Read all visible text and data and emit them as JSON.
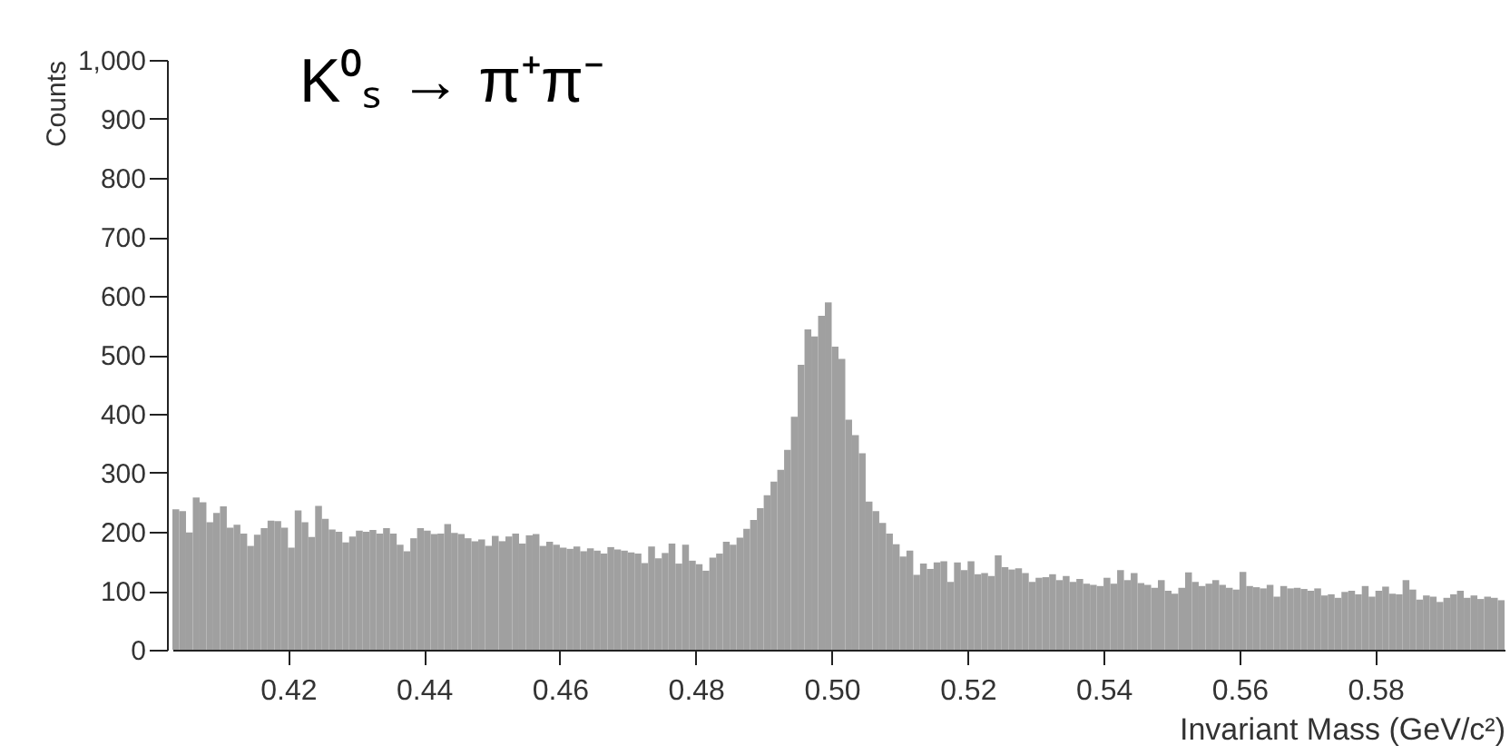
{
  "chart_data": {
    "type": "histogram",
    "title": "K⁰ₛ → π⁺π⁻",
    "xlabel": "Invariant Mass (GeV/c²)",
    "ylabel": "Counts",
    "bins": [
      0.403,
      0.404,
      0.405,
      0.406,
      0.407,
      0.408,
      0.409,
      0.41,
      0.411,
      0.412,
      0.413,
      0.414,
      0.415,
      0.416,
      0.417,
      0.418,
      0.419,
      0.42,
      0.421,
      0.422,
      0.423,
      0.424,
      0.425,
      0.426,
      0.427,
      0.428,
      0.429,
      0.43,
      0.431,
      0.432,
      0.433,
      0.434,
      0.435,
      0.436,
      0.437,
      0.438,
      0.439,
      0.44,
      0.441,
      0.442,
      0.443,
      0.444,
      0.445,
      0.446,
      0.447,
      0.448,
      0.449,
      0.45,
      0.451,
      0.452,
      0.453,
      0.454,
      0.455,
      0.456,
      0.457,
      0.458,
      0.459,
      0.46,
      0.461,
      0.462,
      0.463,
      0.464,
      0.465,
      0.466,
      0.467,
      0.468,
      0.469,
      0.47,
      0.471,
      0.472,
      0.473,
      0.474,
      0.475,
      0.476,
      0.477,
      0.478,
      0.479,
      0.48,
      0.481,
      0.482,
      0.483,
      0.484,
      0.485,
      0.486,
      0.487,
      0.488,
      0.489,
      0.49,
      0.491,
      0.492,
      0.493,
      0.494,
      0.495,
      0.496,
      0.497,
      0.498,
      0.499,
      0.5,
      0.501,
      0.502,
      0.503,
      0.504,
      0.505,
      0.506,
      0.507,
      0.508,
      0.509,
      0.51,
      0.511,
      0.512,
      0.513,
      0.514,
      0.515,
      0.516,
      0.517,
      0.518,
      0.519,
      0.52,
      0.521,
      0.522,
      0.523,
      0.524,
      0.525,
      0.526,
      0.527,
      0.528,
      0.529,
      0.53,
      0.531,
      0.532,
      0.533,
      0.534,
      0.535,
      0.536,
      0.537,
      0.538,
      0.539,
      0.54,
      0.541,
      0.542,
      0.543,
      0.544,
      0.545,
      0.546,
      0.547,
      0.548,
      0.549,
      0.55,
      0.551,
      0.552,
      0.553,
      0.554,
      0.555,
      0.556,
      0.557,
      0.558,
      0.559,
      0.56,
      0.561,
      0.562,
      0.563,
      0.564,
      0.565,
      0.566,
      0.567,
      0.568,
      0.569,
      0.57,
      0.571,
      0.572,
      0.573,
      0.574,
      0.575,
      0.576,
      0.577,
      0.578,
      0.579,
      0.58,
      0.581,
      0.582,
      0.583,
      0.584,
      0.585,
      0.586,
      0.587,
      0.588,
      0.589,
      0.59,
      0.591,
      0.592,
      0.593,
      0.594,
      0.595,
      0.596,
      0.597,
      0.598,
      0.599
    ],
    "values": [
      238,
      235,
      199,
      258,
      250,
      216,
      232,
      243,
      207,
      212,
      197,
      176,
      195,
      206,
      219,
      218,
      207,
      173,
      236,
      216,
      191,
      244,
      222,
      204,
      200,
      182,
      192,
      202,
      200,
      203,
      197,
      206,
      197,
      178,
      167,
      189,
      206,
      202,
      196,
      197,
      213,
      198,
      196,
      189,
      184,
      187,
      176,
      193,
      184,
      192,
      197,
      180,
      194,
      196,
      176,
      183,
      178,
      173,
      171,
      175,
      167,
      172,
      168,
      163,
      174,
      170,
      168,
      165,
      163,
      147,
      175,
      155,
      164,
      180,
      146,
      178,
      151,
      145,
      134,
      156,
      163,
      183,
      178,
      190,
      205,
      220,
      240,
      262,
      285,
      305,
      339,
      395,
      483,
      543,
      531,
      566,
      589,
      514,
      493,
      390,
      364,
      333,
      251,
      235,
      215,
      197,
      179,
      158,
      168,
      127,
      146,
      137,
      148,
      150,
      115,
      148,
      135,
      150,
      128,
      130,
      125,
      160,
      140,
      136,
      138,
      130,
      115,
      122,
      123,
      128,
      118,
      125,
      115,
      120,
      112,
      110,
      108,
      122,
      112,
      135,
      118,
      130,
      113,
      110,
      105,
      118,
      100,
      95,
      105,
      131,
      115,
      108,
      112,
      118,
      110,
      105,
      102,
      132,
      108,
      106,
      104,
      110,
      90,
      108,
      104,
      105,
      103,
      100,
      104,
      92,
      94,
      88,
      98,
      100,
      94,
      108,
      90,
      100,
      107,
      95,
      94,
      118,
      102,
      85,
      92,
      90,
      81,
      88,
      94,
      100,
      88,
      92,
      86,
      90,
      88,
      84
    ],
    "color": "#a0a0a0",
    "xlim": [
      0.403,
      0.599
    ],
    "xticks": [
      0.42,
      0.44,
      0.46,
      0.48,
      {
        "value": 0.5,
        "label": "0.50"
      },
      0.52,
      0.54,
      0.56,
      0.58
    ],
    "ylim": [
      0,
      1000
    ],
    "yticks": [
      0,
      100,
      200,
      300,
      400,
      500,
      600,
      700,
      800,
      900,
      {
        "value": 1000,
        "label": "1,000"
      }
    ],
    "grid": false
  }
}
